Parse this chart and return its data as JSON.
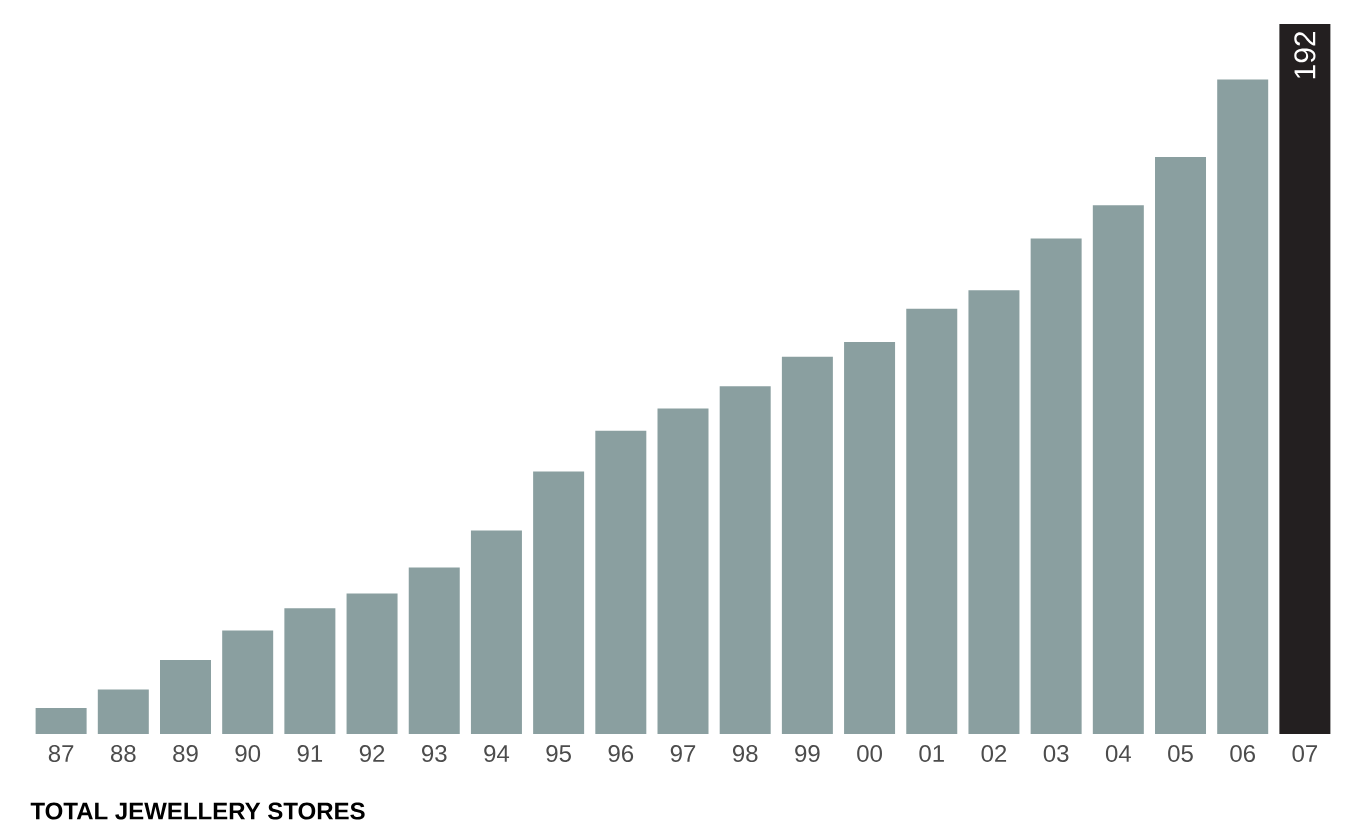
{
  "chart_data": {
    "type": "bar",
    "title": "TOTAL JEWELLERY STORES",
    "categories": [
      "87",
      "88",
      "89",
      "90",
      "91",
      "92",
      "93",
      "94",
      "95",
      "96",
      "97",
      "98",
      "99",
      "00",
      "01",
      "02",
      "03",
      "04",
      "05",
      "06",
      "07"
    ],
    "values": [
      7,
      12,
      20,
      28,
      34,
      38,
      45,
      55,
      71,
      82,
      88,
      94,
      102,
      106,
      115,
      120,
      134,
      143,
      156,
      177,
      192
    ],
    "colors": [
      "#8a9fa0",
      "#8a9fa0",
      "#8a9fa0",
      "#8a9fa0",
      "#8a9fa0",
      "#8a9fa0",
      "#8a9fa0",
      "#8a9fa0",
      "#8a9fa0",
      "#8a9fa0",
      "#8a9fa0",
      "#8a9fa0",
      "#8a9fa0",
      "#8a9fa0",
      "#8a9fa0",
      "#8a9fa0",
      "#8a9fa0",
      "#8a9fa0",
      "#8a9fa0",
      "#8a9fa0",
      "#231f20"
    ],
    "value_labels": [
      null,
      null,
      null,
      null,
      null,
      null,
      null,
      null,
      null,
      null,
      null,
      null,
      null,
      null,
      null,
      null,
      null,
      null,
      null,
      null,
      "192"
    ],
    "tick_labels": "x"
  }
}
